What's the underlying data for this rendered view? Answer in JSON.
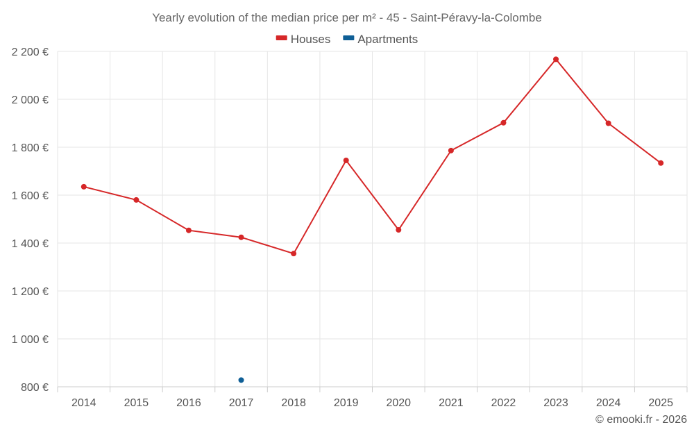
{
  "chart_data": {
    "type": "line",
    "title": "Yearly evolution of the median price per m² - 45 - Saint-Péravy-la-Colombe",
    "categories": [
      "2014",
      "2015",
      "2016",
      "2017",
      "2018",
      "2019",
      "2020",
      "2021",
      "2022",
      "2023",
      "2024",
      "2025"
    ],
    "series": [
      {
        "name": "Houses",
        "color": "#d62728",
        "values": [
          1635,
          1580,
          1453,
          1424,
          1356,
          1745,
          1455,
          1786,
          1902,
          2167,
          1900,
          1734
        ]
      },
      {
        "name": "Apartments",
        "color": "#0f5f96",
        "values": [
          null,
          null,
          null,
          828,
          null,
          null,
          null,
          null,
          null,
          null,
          null,
          null
        ]
      }
    ],
    "ylim": [
      800,
      2200
    ],
    "yticks": [
      800,
      1000,
      1200,
      1400,
      1600,
      1800,
      2000,
      2200
    ],
    "ytick_labels": [
      "800 €",
      "1 000 €",
      "1 200 €",
      "1 400 €",
      "1 600 €",
      "1 800 €",
      "2 000 €",
      "2 200 €"
    ],
    "xlabel": "",
    "ylabel": "",
    "grid": true,
    "legend_position": "top-center"
  },
  "credit": "© emooki.fr - 2026"
}
